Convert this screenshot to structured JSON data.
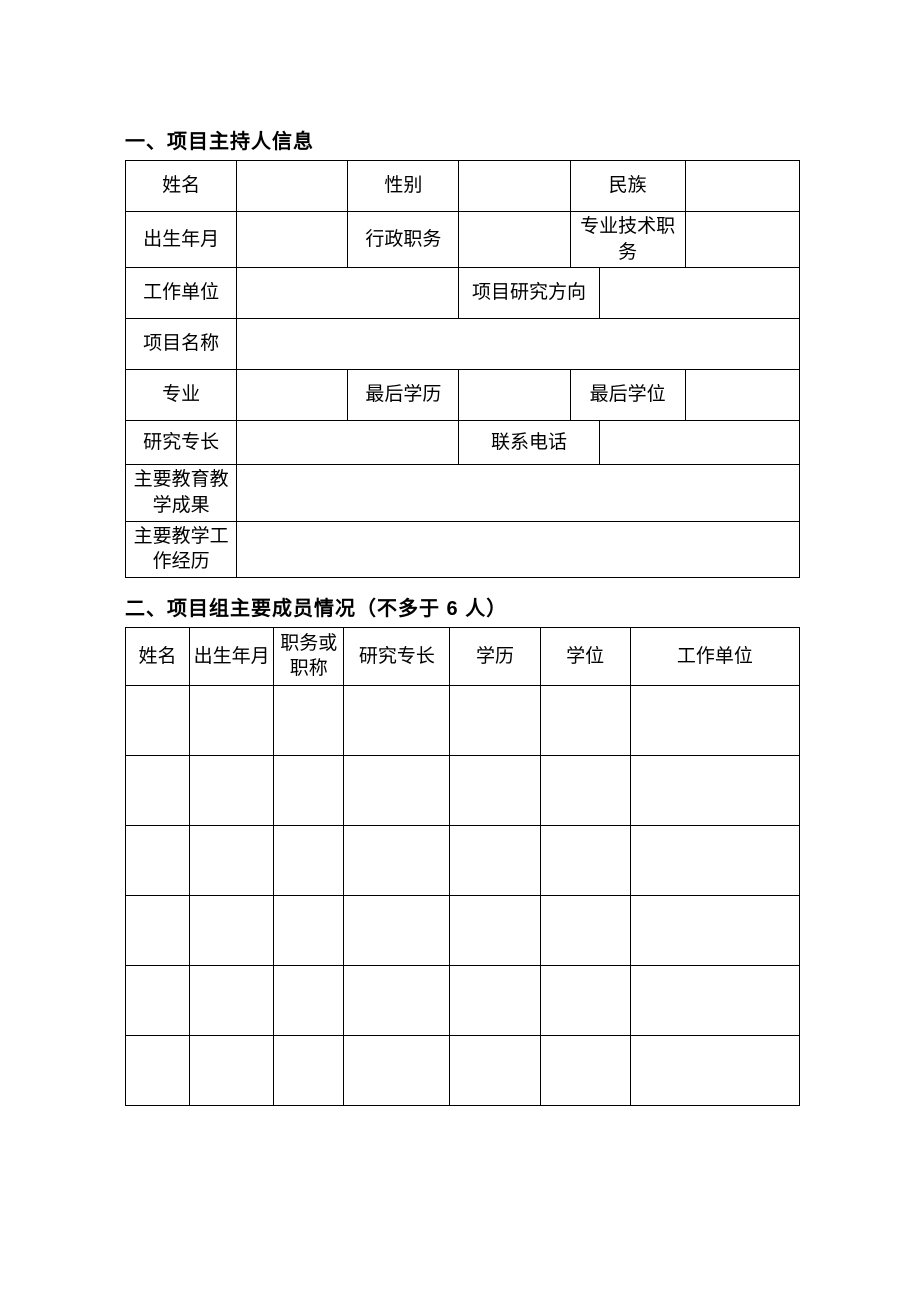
{
  "page": {
    "background_color": "#ffffff",
    "text_color": "#000000",
    "border_color": "#000000",
    "body_font": "SimSun",
    "heading_font": "SimHei",
    "heading_fontsize_pt": 15,
    "cell_fontsize_pt": 14
  },
  "section1": {
    "heading": "一、项目主持人信息",
    "labels": {
      "name": "姓名",
      "gender": "性别",
      "ethnicity": "民族",
      "birth": "出生年月",
      "admin_post": "行政职务",
      "pro_title": "专业技术职务",
      "workplace": "工作单位",
      "research_dir": "项目研究方向",
      "project_name": "项目名称",
      "major": "专业",
      "last_edu": "最后学历",
      "last_degree": "最后学位",
      "specialty": "研究专长",
      "phone": "联系电话",
      "edu_results": "主要教育教学成果",
      "work_history": "主要教学工作经历"
    },
    "values": {
      "name": "",
      "gender": "",
      "ethnicity": "",
      "birth": "",
      "admin_post": "",
      "pro_title": "",
      "workplace": "",
      "research_dir": "",
      "project_name": "",
      "major": "",
      "last_edu": "",
      "last_degree": "",
      "specialty": "",
      "phone": "",
      "edu_results": "",
      "work_history": ""
    }
  },
  "section2": {
    "heading": "二、项目组主要成员情况（不多于 6 人）",
    "columns": {
      "name": "姓名",
      "birth": "出生年月",
      "title": "职务或职称",
      "specialty": "研究专长",
      "education": "学历",
      "degree": "学位",
      "workplace": "工作单位"
    },
    "rows": [
      {
        "name": "",
        "birth": "",
        "title": "",
        "specialty": "",
        "education": "",
        "degree": "",
        "workplace": ""
      },
      {
        "name": "",
        "birth": "",
        "title": "",
        "specialty": "",
        "education": "",
        "degree": "",
        "workplace": ""
      },
      {
        "name": "",
        "birth": "",
        "title": "",
        "specialty": "",
        "education": "",
        "degree": "",
        "workplace": ""
      },
      {
        "name": "",
        "birth": "",
        "title": "",
        "specialty": "",
        "education": "",
        "degree": "",
        "workplace": ""
      },
      {
        "name": "",
        "birth": "",
        "title": "",
        "specialty": "",
        "education": "",
        "degree": "",
        "workplace": ""
      },
      {
        "name": "",
        "birth": "",
        "title": "",
        "specialty": "",
        "education": "",
        "degree": "",
        "workplace": ""
      }
    ]
  }
}
